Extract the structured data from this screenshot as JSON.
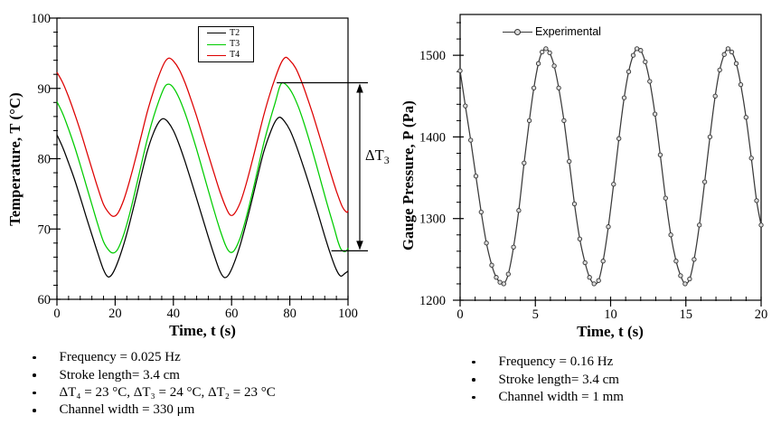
{
  "notes": {
    "left": {
      "items": [
        "Frequency = 0.025 Hz",
        "Stroke length= 3.4 cm",
        "ΔT₄ = 23 °C, ΔT₃ = 24 °C, ΔT₂ = 23 °C",
        "Channel width = 330 μm"
      ]
    },
    "right": {
      "items": [
        "Frequency = 0.16 Hz",
        "Stroke length= 3.4 cm",
        "Channel width = 1 mm"
      ]
    }
  },
  "chart_data": [
    {
      "id": "temperature",
      "type": "line",
      "x_title": "Time, t (s)",
      "y_title": "Temperature, T (°C)",
      "xlim": [
        0,
        100
      ],
      "ylim": [
        60,
        100
      ],
      "x_ticks": [
        0,
        20,
        40,
        60,
        80,
        100
      ],
      "x_minor_step": 4,
      "y_ticks": [
        60,
        70,
        80,
        90,
        100
      ],
      "y_minor_step": 2,
      "grid": false,
      "legend_position": "top-center-boxed",
      "legend": [
        {
          "label": "T2"
        },
        {
          "label": "T3"
        },
        {
          "label": "T4"
        }
      ],
      "annotation": {
        "label": "ΔT",
        "sub": "3",
        "top_t": 75.5,
        "top_value": 90.8,
        "bottom_t": 94.3,
        "bottom_value": 66.9
      },
      "series": [
        {
          "name": "T2",
          "color": "#000000",
          "points": [
            [
              0,
              83.4
            ],
            [
              2,
              81.6
            ],
            [
              4,
              79.4
            ],
            [
              6,
              77.1
            ],
            [
              8,
              74.5
            ],
            [
              10,
              71.8
            ],
            [
              12,
              69.2
            ],
            [
              14,
              66.6
            ],
            [
              16,
              64.2
            ],
            [
              17.5,
              63.2
            ],
            [
              19,
              63.6
            ],
            [
              21,
              65.4
            ],
            [
              23,
              67.9
            ],
            [
              25,
              70.9
            ],
            [
              27,
              74.2
            ],
            [
              29,
              77.7
            ],
            [
              31,
              81.0
            ],
            [
              33,
              83.5
            ],
            [
              35,
              85.2
            ],
            [
              36.5,
              85.7
            ],
            [
              38,
              85.3
            ],
            [
              40,
              84.0
            ],
            [
              42,
              82.0
            ],
            [
              44,
              79.6
            ],
            [
              46,
              77.0
            ],
            [
              48,
              74.3
            ],
            [
              50,
              71.6
            ],
            [
              52,
              68.9
            ],
            [
              54,
              66.3
            ],
            [
              56,
              64.0
            ],
            [
              57.5,
              63.1
            ],
            [
              59,
              63.5
            ],
            [
              61,
              65.3
            ],
            [
              63,
              67.8
            ],
            [
              65,
              70.8
            ],
            [
              67,
              74.1
            ],
            [
              69,
              77.6
            ],
            [
              71,
              80.9
            ],
            [
              73,
              83.4
            ],
            [
              75,
              85.3
            ],
            [
              76.5,
              85.9
            ],
            [
              78,
              85.4
            ],
            [
              80,
              84.1
            ],
            [
              82,
              82.1
            ],
            [
              84,
              79.7
            ],
            [
              86,
              77.2
            ],
            [
              88,
              74.5
            ],
            [
              90,
              71.8
            ],
            [
              92,
              69.0
            ],
            [
              94,
              66.4
            ],
            [
              96,
              64.2
            ],
            [
              97.5,
              63.3
            ],
            [
              99,
              63.7
            ],
            [
              100,
              64.0
            ]
          ]
        },
        {
          "name": "T3",
          "color": "#00CC00",
          "points": [
            [
              0,
              88.1
            ],
            [
              2,
              86.4
            ],
            [
              4,
              84.2
            ],
            [
              6,
              81.8
            ],
            [
              8,
              79.1
            ],
            [
              10,
              76.3
            ],
            [
              12,
              73.5
            ],
            [
              14,
              70.7
            ],
            [
              16,
              68.2
            ],
            [
              18,
              66.9
            ],
            [
              19.5,
              66.6
            ],
            [
              21,
              67.2
            ],
            [
              23,
              69.3
            ],
            [
              25,
              72.2
            ],
            [
              27,
              75.6
            ],
            [
              29,
              79.2
            ],
            [
              31,
              82.7
            ],
            [
              33,
              85.7
            ],
            [
              35,
              88.2
            ],
            [
              37,
              90.2
            ],
            [
              38.5,
              90.6
            ],
            [
              40,
              90.1
            ],
            [
              42,
              88.6
            ],
            [
              44,
              86.5
            ],
            [
              46,
              84.0
            ],
            [
              48,
              81.3
            ],
            [
              50,
              78.4
            ],
            [
              52,
              75.5
            ],
            [
              54,
              72.6
            ],
            [
              56,
              69.9
            ],
            [
              58,
              67.6
            ],
            [
              59.5,
              66.7
            ],
            [
              61,
              67.0
            ],
            [
              63,
              68.8
            ],
            [
              65,
              71.6
            ],
            [
              67,
              74.9
            ],
            [
              69,
              78.5
            ],
            [
              71,
              82.1
            ],
            [
              73,
              85.2
            ],
            [
              75,
              88.0
            ],
            [
              76.5,
              90.2
            ],
            [
              77.5,
              90.8
            ],
            [
              79,
              90.4
            ],
            [
              81,
              89.2
            ],
            [
              83,
              87.3
            ],
            [
              85,
              84.9
            ],
            [
              87,
              82.2
            ],
            [
              89,
              79.3
            ],
            [
              91,
              76.3
            ],
            [
              93,
              73.3
            ],
            [
              95,
              70.5
            ],
            [
              96.5,
              68.3
            ],
            [
              97.5,
              67.2
            ],
            [
              98.5,
              66.8
            ],
            [
              99.5,
              66.9
            ],
            [
              100,
              67.3
            ]
          ]
        },
        {
          "name": "T4",
          "color": "#DD0000",
          "points": [
            [
              0,
              92.3
            ],
            [
              2,
              90.8
            ],
            [
              4,
              88.8
            ],
            [
              6,
              86.5
            ],
            [
              8,
              84.0
            ],
            [
              10,
              81.3
            ],
            [
              12,
              78.6
            ],
            [
              14,
              75.9
            ],
            [
              16,
              73.5
            ],
            [
              18,
              72.2
            ],
            [
              19.5,
              71.8
            ],
            [
              21,
              72.3
            ],
            [
              23,
              74.2
            ],
            [
              25,
              76.9
            ],
            [
              27,
              80.0
            ],
            [
              29,
              83.3
            ],
            [
              31,
              86.6
            ],
            [
              33,
              89.4
            ],
            [
              35,
              91.8
            ],
            [
              37,
              93.7
            ],
            [
              38.5,
              94.3
            ],
            [
              40,
              93.9
            ],
            [
              42,
              92.7
            ],
            [
              44,
              90.8
            ],
            [
              46,
              88.5
            ],
            [
              48,
              86.0
            ],
            [
              50,
              83.3
            ],
            [
              52,
              80.6
            ],
            [
              54,
              77.9
            ],
            [
              56,
              75.3
            ],
            [
              58,
              73.1
            ],
            [
              59.5,
              72.0
            ],
            [
              61,
              72.2
            ],
            [
              63,
              73.8
            ],
            [
              65,
              76.4
            ],
            [
              67,
              79.5
            ],
            [
              69,
              82.8
            ],
            [
              71,
              86.1
            ],
            [
              73,
              89.0
            ],
            [
              75,
              91.5
            ],
            [
              77,
              93.6
            ],
            [
              78.5,
              94.4
            ],
            [
              80,
              94.0
            ],
            [
              82,
              92.9
            ],
            [
              84,
              91.0
            ],
            [
              86,
              88.7
            ],
            [
              88,
              86.2
            ],
            [
              90,
              83.5
            ],
            [
              92,
              80.8
            ],
            [
              94,
              78.0
            ],
            [
              96,
              75.4
            ],
            [
              98,
              73.2
            ],
            [
              99.5,
              72.4
            ],
            [
              100,
              72.6
            ]
          ]
        }
      ]
    },
    {
      "id": "pressure",
      "type": "line",
      "x_title": "Time, t (s)",
      "y_title": "Gauge Pressure, P (Pa)",
      "xlim": [
        0,
        20
      ],
      "ylim": [
        1200,
        1550
      ],
      "x_ticks": [
        0,
        5,
        10,
        15,
        20
      ],
      "x_minor_step": 1,
      "y_ticks": [
        1200,
        1300,
        1400,
        1500
      ],
      "y_minor_step": 20,
      "grid": false,
      "legend_position": "top-inside-unboxed",
      "legend": [
        {
          "label": "Experimental"
        }
      ],
      "series": [
        {
          "name": "Experimental",
          "color": "#3A3A3A",
          "marker": {
            "r": 2.2,
            "stroke": "#333333",
            "fill": "#DCDCDC"
          },
          "points": [
            [
              0,
              1481
            ],
            [
              0.35,
              1438
            ],
            [
              0.7,
              1396
            ],
            [
              1.05,
              1352
            ],
            [
              1.4,
              1308
            ],
            [
              1.75,
              1270
            ],
            [
              2.1,
              1243
            ],
            [
              2.4,
              1228
            ],
            [
              2.65,
              1222
            ],
            [
              2.9,
              1220
            ],
            [
              3.2,
              1232
            ],
            [
              3.55,
              1265
            ],
            [
              3.9,
              1310
            ],
            [
              4.25,
              1368
            ],
            [
              4.6,
              1420
            ],
            [
              4.9,
              1460
            ],
            [
              5.2,
              1490
            ],
            [
              5.45,
              1504
            ],
            [
              5.7,
              1508
            ],
            [
              5.95,
              1503
            ],
            [
              6.25,
              1487
            ],
            [
              6.55,
              1460
            ],
            [
              6.9,
              1420
            ],
            [
              7.25,
              1370
            ],
            [
              7.6,
              1318
            ],
            [
              7.95,
              1275
            ],
            [
              8.3,
              1246
            ],
            [
              8.6,
              1228
            ],
            [
              8.9,
              1220
            ],
            [
              9.2,
              1224
            ],
            [
              9.5,
              1248
            ],
            [
              9.85,
              1290
            ],
            [
              10.2,
              1342
            ],
            [
              10.55,
              1398
            ],
            [
              10.9,
              1448
            ],
            [
              11.2,
              1480
            ],
            [
              11.5,
              1500
            ],
            [
              11.75,
              1508
            ],
            [
              12,
              1506
            ],
            [
              12.3,
              1492
            ],
            [
              12.6,
              1468
            ],
            [
              12.95,
              1428
            ],
            [
              13.3,
              1378
            ],
            [
              13.65,
              1325
            ],
            [
              14,
              1280
            ],
            [
              14.35,
              1248
            ],
            [
              14.65,
              1230
            ],
            [
              14.95,
              1220
            ],
            [
              15.25,
              1226
            ],
            [
              15.55,
              1250
            ],
            [
              15.9,
              1292
            ],
            [
              16.25,
              1345
            ],
            [
              16.6,
              1400
            ],
            [
              16.95,
              1450
            ],
            [
              17.25,
              1482
            ],
            [
              17.55,
              1501
            ],
            [
              17.8,
              1508
            ],
            [
              18.05,
              1504
            ],
            [
              18.35,
              1490
            ],
            [
              18.65,
              1464
            ],
            [
              19,
              1424
            ],
            [
              19.35,
              1374
            ],
            [
              19.7,
              1322
            ],
            [
              20,
              1292
            ]
          ]
        }
      ]
    }
  ]
}
